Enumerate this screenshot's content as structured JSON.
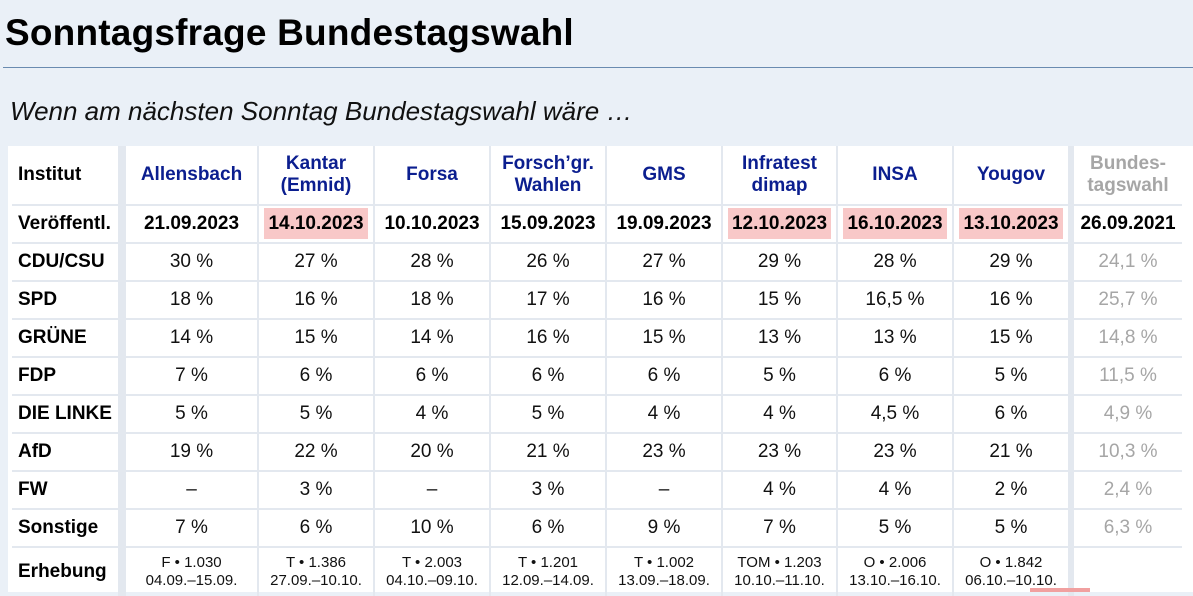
{
  "page": {
    "title": "Sonntagsfrage Bundestagswahl",
    "subtitle": "Wenn am nächsten Sonntag Bundestagswahl wäre …"
  },
  "table": {
    "row_labels": {
      "institut": "Institut",
      "published": "Veröffentl.",
      "erhebung": "Erhebung"
    },
    "institutes": [
      {
        "name": "Allensbach",
        "published": "21.09.2023",
        "highlight": false,
        "method": "F • 1.030",
        "period": "04.09.–15.09."
      },
      {
        "name": "Kantar (Emnid)",
        "published": "14.10.2023",
        "highlight": true,
        "method": "T • 1.386",
        "period": "27.09.–10.10."
      },
      {
        "name": "Forsa",
        "published": "10.10.2023",
        "highlight": false,
        "method": "T • 2.003",
        "period": "04.10.–09.10."
      },
      {
        "name": "Forsch’gr. Wahlen",
        "published": "15.09.2023",
        "highlight": false,
        "method": "T • 1.201",
        "period": "12.09.–14.09."
      },
      {
        "name": "GMS",
        "published": "19.09.2023",
        "highlight": false,
        "method": "T • 1.002",
        "period": "13.09.–18.09."
      },
      {
        "name": "Infratest dimap",
        "published": "12.10.2023",
        "highlight": true,
        "method": "TOM • 1.203",
        "period": "10.10.–11.10."
      },
      {
        "name": "INSA",
        "published": "16.10.2023",
        "highlight": true,
        "method": "O • 2.006",
        "period": "13.10.–16.10."
      },
      {
        "name": "Yougov",
        "published": "13.10.2023",
        "highlight": true,
        "method": "O • 1.842",
        "period": "06.10.–10.10."
      }
    ],
    "election": {
      "name": "Bundes-tagswahl",
      "date": "26.09.2021"
    },
    "highlight_color": "#f8c8c8",
    "institute_color": "#0b1e8f",
    "election_color": "#a6a6a6",
    "parties": [
      {
        "name": "CDU/CSU",
        "values": [
          "30 %",
          "27 %",
          "28 %",
          "26 %",
          "27 %",
          "29 %",
          "28 %",
          "29 %"
        ],
        "result": "24,1 %"
      },
      {
        "name": "SPD",
        "values": [
          "18 %",
          "16 %",
          "18 %",
          "17 %",
          "16 %",
          "15 %",
          "16,5 %",
          "16 %"
        ],
        "result": "25,7 %"
      },
      {
        "name": "GRÜNE",
        "values": [
          "14 %",
          "15 %",
          "14 %",
          "16 %",
          "15 %",
          "13 %",
          "13 %",
          "15 %"
        ],
        "result": "14,8 %"
      },
      {
        "name": "FDP",
        "values": [
          "7 %",
          "6 %",
          "6 %",
          "6 %",
          "6 %",
          "5 %",
          "6 %",
          "5 %"
        ],
        "result": "11,5 %"
      },
      {
        "name": "DIE LINKE",
        "values": [
          "5 %",
          "5 %",
          "4 %",
          "5 %",
          "4 %",
          "4 %",
          "4,5 %",
          "6 %"
        ],
        "result": "4,9 %"
      },
      {
        "name": "AfD",
        "values": [
          "19 %",
          "22 %",
          "20 %",
          "21 %",
          "23 %",
          "23 %",
          "23 %",
          "21 %"
        ],
        "result": "10,3 %"
      },
      {
        "name": "FW",
        "values": [
          "–",
          "3 %",
          "–",
          "3 %",
          "–",
          "4 %",
          "4 %",
          "2 %"
        ],
        "result": "2,4 %"
      },
      {
        "name": "Sonstige",
        "values": [
          "7 %",
          "6 %",
          "10 %",
          "6 %",
          "9 %",
          "7 %",
          "5 %",
          "5 %"
        ],
        "result": "6,3 %"
      }
    ]
  }
}
